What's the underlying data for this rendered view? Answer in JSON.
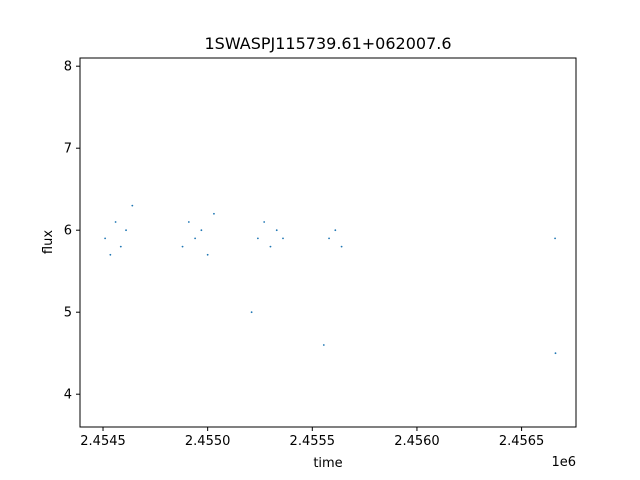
{
  "chart_data": {
    "type": "scatter",
    "title": "1SWASPJ115739.61+062007.6",
    "xlabel": "time",
    "ylabel": "flux",
    "x_offset_label": "1e6",
    "xlim": [
      2454390,
      2456760
    ],
    "ylim": [
      3.6,
      8.1
    ],
    "x_ticks": [
      2454500,
      2455000,
      2455500,
      2456000,
      2456500
    ],
    "x_tick_labels": [
      "2.4545",
      "2.4550",
      "2.4555",
      "2.4560",
      "2.4565"
    ],
    "y_ticks": [
      4,
      5,
      6,
      7,
      8
    ],
    "y_tick_labels": [
      "4",
      "5",
      "6",
      "7",
      "8"
    ],
    "grid": false,
    "point_color": "#1f77b4",
    "series": [
      {
        "values": [
          {
            "x": 2454510,
            "y": 5.9
          },
          {
            "x": 2454535,
            "y": 5.7
          },
          {
            "x": 2454560,
            "y": 6.1
          },
          {
            "x": 2454585,
            "y": 5.8
          },
          {
            "x": 2454610,
            "y": 6.0
          },
          {
            "x": 2454640,
            "y": 6.3
          },
          {
            "x": 2454880,
            "y": 5.8
          },
          {
            "x": 2454910,
            "y": 6.1
          },
          {
            "x": 2454940,
            "y": 5.9
          },
          {
            "x": 2454970,
            "y": 6.0
          },
          {
            "x": 2455000,
            "y": 5.7
          },
          {
            "x": 2455030,
            "y": 6.2
          },
          {
            "x": 2455210,
            "y": 5.0
          },
          {
            "x": 2455240,
            "y": 5.9
          },
          {
            "x": 2455270,
            "y": 6.1
          },
          {
            "x": 2455300,
            "y": 5.8
          },
          {
            "x": 2455330,
            "y": 6.0
          },
          {
            "x": 2455360,
            "y": 5.9
          },
          {
            "x": 2455555,
            "y": 4.6
          },
          {
            "x": 2455580,
            "y": 5.9
          },
          {
            "x": 2455610,
            "y": 6.0
          },
          {
            "x": 2455640,
            "y": 5.8
          },
          {
            "x": 2456660,
            "y": 5.9
          },
          {
            "x": 2456662,
            "y": 4.5
          }
        ]
      }
    ]
  }
}
